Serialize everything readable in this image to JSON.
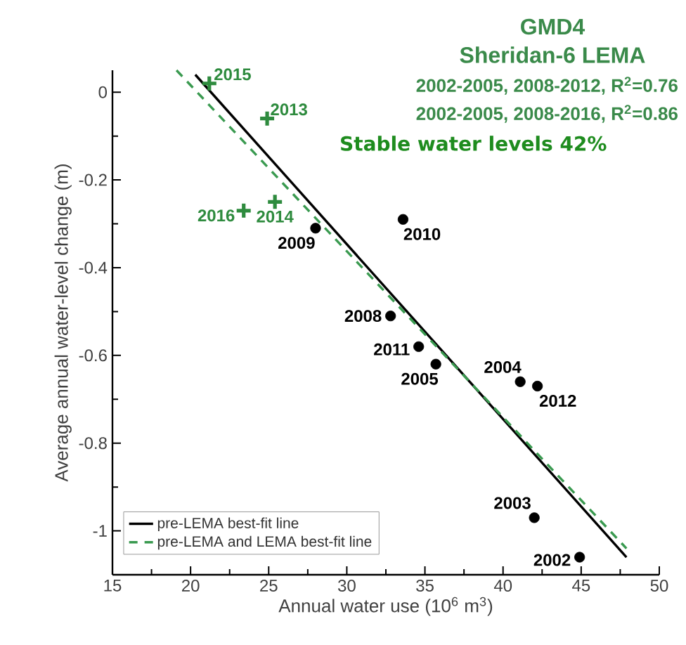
{
  "chart_data": {
    "type": "scatter",
    "title": "GMD4",
    "subtitle": "Sheridan-6 LEMA",
    "xlabel": "Annual water use (10$^{6}$ m$^{3}$)",
    "ylabel": "Average annual water-level change (m)",
    "xlim": [
      15,
      50
    ],
    "ylim": [
      -1.1,
      0.05
    ],
    "xticks": [
      15,
      20,
      25,
      30,
      35,
      40,
      45,
      50
    ],
    "yticks": [
      0,
      -0.2,
      -0.4,
      -0.6,
      -0.8,
      -1
    ],
    "grid": false,
    "legend": "bottom left",
    "series": [
      {
        "marker": "circle",
        "color": "#000000",
        "x": [
          44.9,
          42.0,
          41.1,
          35.7,
          32.8,
          28.0,
          33.6,
          34.6,
          42.2
        ],
        "values": [
          -1.06,
          -0.97,
          -0.66,
          -0.62,
          -0.51,
          -0.31,
          -0.29,
          -0.58,
          -0.67
        ]
      },
      {
        "marker": "cross",
        "color": "#2e8b3e",
        "x": [
          24.9,
          25.4,
          21.2,
          23.4
        ],
        "values": [
          -0.06,
          -0.25,
          0.02,
          -0.27
        ]
      },
      {
        "type": "line",
        "name": "pre-LEMA best-fit line",
        "line_style": "solid",
        "color": "#000000",
        "x": [
          20.3,
          47.9
        ],
        "values": [
          0.04,
          -1.06
        ]
      },
      {
        "type": "line",
        "name": "pre-LEMA and LEMA best-fit line",
        "line_style": "dashed",
        "color": "#3a9a50",
        "x": [
          19.1,
          47.9
        ],
        "values": [
          0.05,
          -1.04
        ]
      }
    ],
    "annotations": [
      "2002-2005, 2008-2012, R$^{2}$=0.76",
      "2002-2005, 2008-2016, R$^{2}$=0.86",
      "Stable water levels 42%",
      {
        "text": "2015",
        "x": 21.2,
        "y": 0.02
      },
      {
        "text": "2013",
        "x": 24.9,
        "y": -0.06
      },
      {
        "text": "2016",
        "x": 23.4,
        "y": -0.27
      },
      {
        "text": "2014",
        "x": 25.4,
        "y": -0.25
      },
      {
        "text": "2009",
        "x": 28.0,
        "y": -0.31
      },
      {
        "text": "2010",
        "x": 33.6,
        "y": -0.29
      },
      {
        "text": "2008",
        "x": 32.8,
        "y": -0.51
      },
      {
        "text": "2011",
        "x": 34.6,
        "y": -0.58
      },
      {
        "text": "2005",
        "x": 35.7,
        "y": -0.62
      },
      {
        "text": "2004",
        "x": 41.1,
        "y": -0.66
      },
      {
        "text": "2012",
        "x": 42.2,
        "y": -0.67
      },
      {
        "text": "2003",
        "x": 42.0,
        "y": -0.97
      },
      {
        "text": "2002",
        "x": 44.9,
        "y": -1.06
      }
    ]
  }
}
